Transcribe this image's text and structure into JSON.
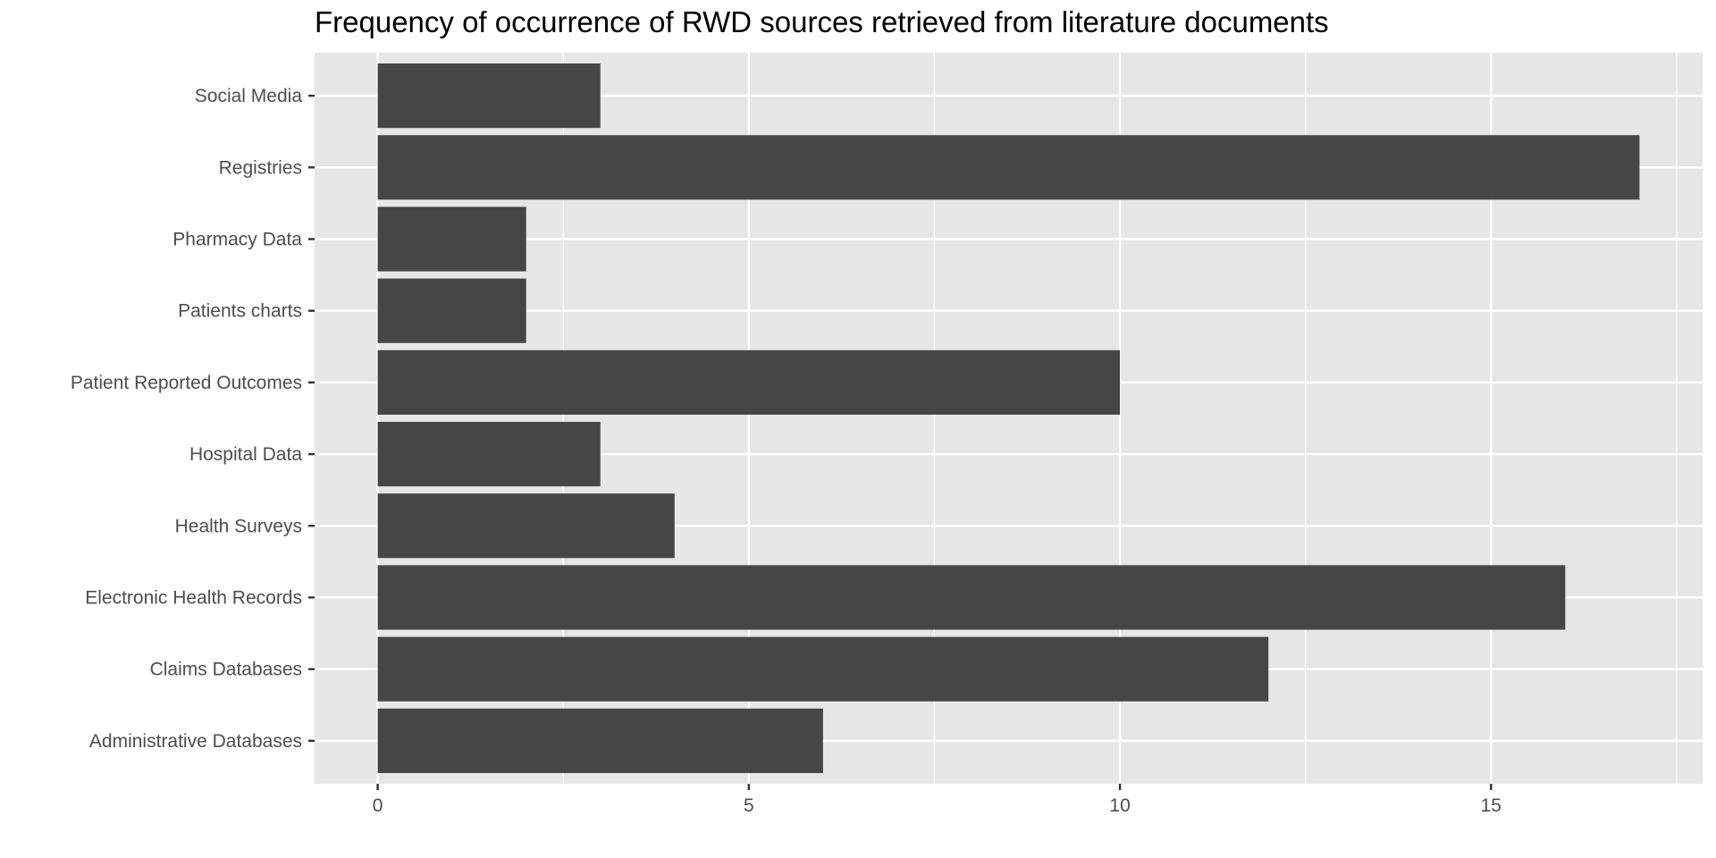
{
  "chart_data": {
    "type": "bar",
    "orientation": "horizontal",
    "title": "Frequency of occurrence of RWD sources retrieved from literature documents",
    "xlabel": "",
    "ylabel": "",
    "categories": [
      "Social Media",
      "Registries",
      "Pharmacy Data",
      "Patients charts",
      "Patient Reported Outcomes",
      "Hospital Data",
      "Health Surveys",
      "Electronic Health Records",
      "Claims Databases",
      "Administrative Databases"
    ],
    "values": [
      3,
      17,
      2,
      2,
      10,
      3,
      4,
      16,
      12,
      6
    ],
    "xlim": [
      -0.85,
      17.85
    ],
    "xticks": [
      0,
      5,
      10,
      15
    ],
    "xtick_labels": [
      "0",
      "5",
      "10",
      "15"
    ],
    "grid": true,
    "legend": "none",
    "colors": {
      "panel_background": "#e6e6e6",
      "bar_fill": "#464646",
      "grid_line": "#ffffff",
      "text": "#4d4d4d",
      "title": "#000000"
    }
  }
}
